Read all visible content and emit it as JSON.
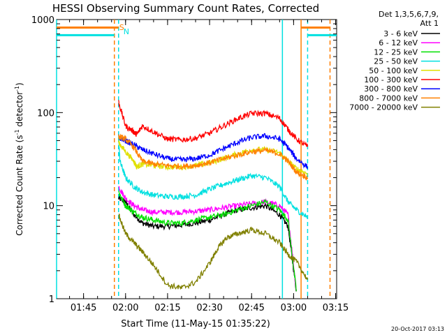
{
  "chart_data": {
    "type": "line",
    "title": "HESSI Observing Summary Count Rates, Corrected",
    "xlabel": "Start Time (11-May-15 01:35:22)",
    "ylabel": "Corrected Count Rate (s",
    "ylabel_exp": "-1",
    "ylabel_tail": " detector",
    "ylabel_tail_exp": "-1",
    "ylabel_close": ")",
    "y_scale": "log",
    "ylim": [
      1,
      1000
    ],
    "xlim": [
      "01:35:22",
      "03:15:22"
    ],
    "x_ticks": [
      "01:45",
      "02:00",
      "02:15",
      "02:30",
      "02:45",
      "03:00",
      "03:15"
    ],
    "y_ticks": [
      "1",
      "10",
      "100",
      "1000"
    ],
    "legend_header_1": "Det 1,3,5,6,7,9,",
    "legend_header_2": "Att 1",
    "legend_position": "right",
    "timestamp": "20-Oct-2017 03:13",
    "flag_labels": [
      {
        "label": "S",
        "color": "#ff8000",
        "time": "01:57:30"
      },
      {
        "label": "N",
        "color": "#00e0e0",
        "time": "01:59:00"
      }
    ],
    "night_intervals": [
      {
        "color": "#00e0e0",
        "start": "01:35:22",
        "end": "01:56:00",
        "level": 680
      },
      {
        "color": "#00e0e0",
        "start": "03:05:00",
        "end": "03:15:22",
        "level": 680
      },
      {
        "color": "#ff8000",
        "start": "01:35:22",
        "end": "01:57:30",
        "level": 820
      },
      {
        "color": "#ff8000",
        "start": "03:02:40",
        "end": "03:13:00",
        "level": 820
      }
    ],
    "vertical_markers": [
      {
        "time": "01:35:22",
        "color": "#00e0e0",
        "style": "solid"
      },
      {
        "time": "01:56:00",
        "color": "#ff8000",
        "style": "dashed"
      },
      {
        "time": "01:57:30",
        "color": "#00e0e0",
        "style": "dashed"
      },
      {
        "time": "02:56:00",
        "color": "#00e0e0",
        "style": "solid"
      },
      {
        "time": "03:02:40",
        "color": "#ff8000",
        "style": "solid"
      },
      {
        "time": "03:05:00",
        "color": "#00e0e0",
        "style": "dashed"
      },
      {
        "time": "03:13:00",
        "color": "#ff8000",
        "style": "dashed"
      }
    ],
    "series": [
      {
        "name": "3 - 6 keV",
        "color": "#000000",
        "x": [
          "01:57:30",
          "02:00",
          "02:03",
          "02:06",
          "02:10",
          "02:15",
          "02:20",
          "02:25",
          "02:30",
          "02:35",
          "02:40",
          "02:45",
          "02:50",
          "02:55",
          "02:58",
          "03:01"
        ],
        "y": [
          12,
          11,
          8,
          6.5,
          6,
          6,
          6.2,
          6.5,
          7,
          8,
          9,
          9.5,
          10,
          8,
          6,
          1.2
        ]
      },
      {
        "name": "6 - 12 keV",
        "color": "#ff00ff",
        "x": [
          "01:57:30",
          "02:00",
          "02:03",
          "02:06",
          "02:10",
          "02:15",
          "02:20",
          "02:25",
          "02:30",
          "02:35",
          "02:40",
          "02:45",
          "02:50",
          "02:55",
          "02:58",
          "03:01"
        ],
        "y": [
          16,
          12,
          10,
          9,
          8.5,
          8.5,
          8.5,
          8.7,
          9,
          9.5,
          10,
          10.5,
          11,
          10,
          8,
          1.2
        ]
      },
      {
        "name": "12 - 25 keV",
        "color": "#00e000",
        "x": [
          "01:57:30",
          "02:00",
          "02:03",
          "02:06",
          "02:10",
          "02:15",
          "02:20",
          "02:25",
          "02:30",
          "02:35",
          "02:40",
          "02:45",
          "02:50",
          "02:55",
          "02:58",
          "03:01"
        ],
        "y": [
          14,
          10,
          8.5,
          7.5,
          7,
          6.5,
          6.5,
          7,
          7.5,
          8,
          9,
          10,
          11,
          9,
          7,
          1.2
        ]
      },
      {
        "name": "25 - 50 keV",
        "color": "#00e0e0",
        "x": [
          "01:57:30",
          "01:58",
          "02:00",
          "02:03",
          "02:06",
          "02:10",
          "02:15",
          "02:20",
          "02:25",
          "02:30",
          "02:35",
          "02:40",
          "02:45",
          "02:50",
          "02:55",
          "02:58",
          "03:01",
          "03:05"
        ],
        "y": [
          55,
          30,
          20,
          16,
          14,
          13,
          12.5,
          12.5,
          13,
          15,
          17,
          19,
          21,
          20,
          16,
          11,
          9,
          7.5
        ]
      },
      {
        "name": "50 - 100 keV",
        "color": "#e0e000",
        "x": [
          "01:57:30",
          "02:00",
          "02:03",
          "02:04",
          "02:06",
          "02:10",
          "02:15",
          "02:20",
          "02:25",
          "02:30",
          "02:35",
          "02:40",
          "02:45",
          "02:50",
          "02:55",
          "02:58",
          "03:01",
          "03:05"
        ],
        "y": [
          48,
          38,
          30,
          26,
          28,
          27,
          26,
          26,
          27,
          29,
          32,
          36,
          40,
          40,
          37,
          30,
          25,
          22
        ]
      },
      {
        "name": "100 - 300 keV",
        "color": "#ff0000",
        "x": [
          "01:57:30",
          "02:00",
          "02:03",
          "02:04",
          "02:06",
          "02:10",
          "02:15",
          "02:20",
          "02:25",
          "02:30",
          "02:35",
          "02:40",
          "02:45",
          "02:50",
          "02:55",
          "02:58",
          "03:01",
          "03:05"
        ],
        "y": [
          130,
          72,
          62,
          58,
          72,
          62,
          52,
          51,
          53,
          60,
          72,
          86,
          98,
          98,
          87,
          66,
          52,
          43
        ]
      },
      {
        "name": "300 - 800 keV",
        "color": "#0000ff",
        "x": [
          "01:57:30",
          "02:00",
          "02:03",
          "02:06",
          "02:10",
          "02:15",
          "02:20",
          "02:25",
          "02:30",
          "02:35",
          "02:40",
          "02:45",
          "02:50",
          "02:55",
          "02:58",
          "03:01",
          "03:05"
        ],
        "y": [
          54,
          50,
          45,
          40,
          36,
          32,
          31,
          32,
          35,
          41,
          48,
          54,
          56,
          52,
          42,
          32,
          26
        ]
      },
      {
        "name": "800 - 7000 keV",
        "color": "#ff8000",
        "x": [
          "01:57:30",
          "02:00",
          "02:03",
          "02:06",
          "02:10",
          "02:15",
          "02:20",
          "02:25",
          "02:30",
          "02:35",
          "02:40",
          "02:45",
          "02:50",
          "02:55",
          "02:58",
          "03:01",
          "03:05"
        ],
        "y": [
          55,
          52,
          42,
          30,
          28,
          27,
          26.5,
          27,
          29,
          32,
          35,
          38,
          39,
          36,
          30,
          23,
          20
        ]
      },
      {
        "name": "7000 - 20000 keV",
        "color": "#808000",
        "x": [
          "01:57:30",
          "02:00",
          "02:03",
          "02:06",
          "02:10",
          "02:15",
          "02:20",
          "02:25",
          "02:30",
          "02:33",
          "02:36",
          "02:40",
          "02:45",
          "02:50",
          "02:55",
          "02:58",
          "03:01",
          "03:05"
        ],
        "y": [
          8,
          5,
          4,
          3.2,
          2.3,
          1.4,
          1.3,
          1.5,
          2.4,
          3.5,
          4.5,
          5,
          5.5,
          5,
          4,
          3,
          2.5,
          1.6
        ]
      }
    ]
  }
}
